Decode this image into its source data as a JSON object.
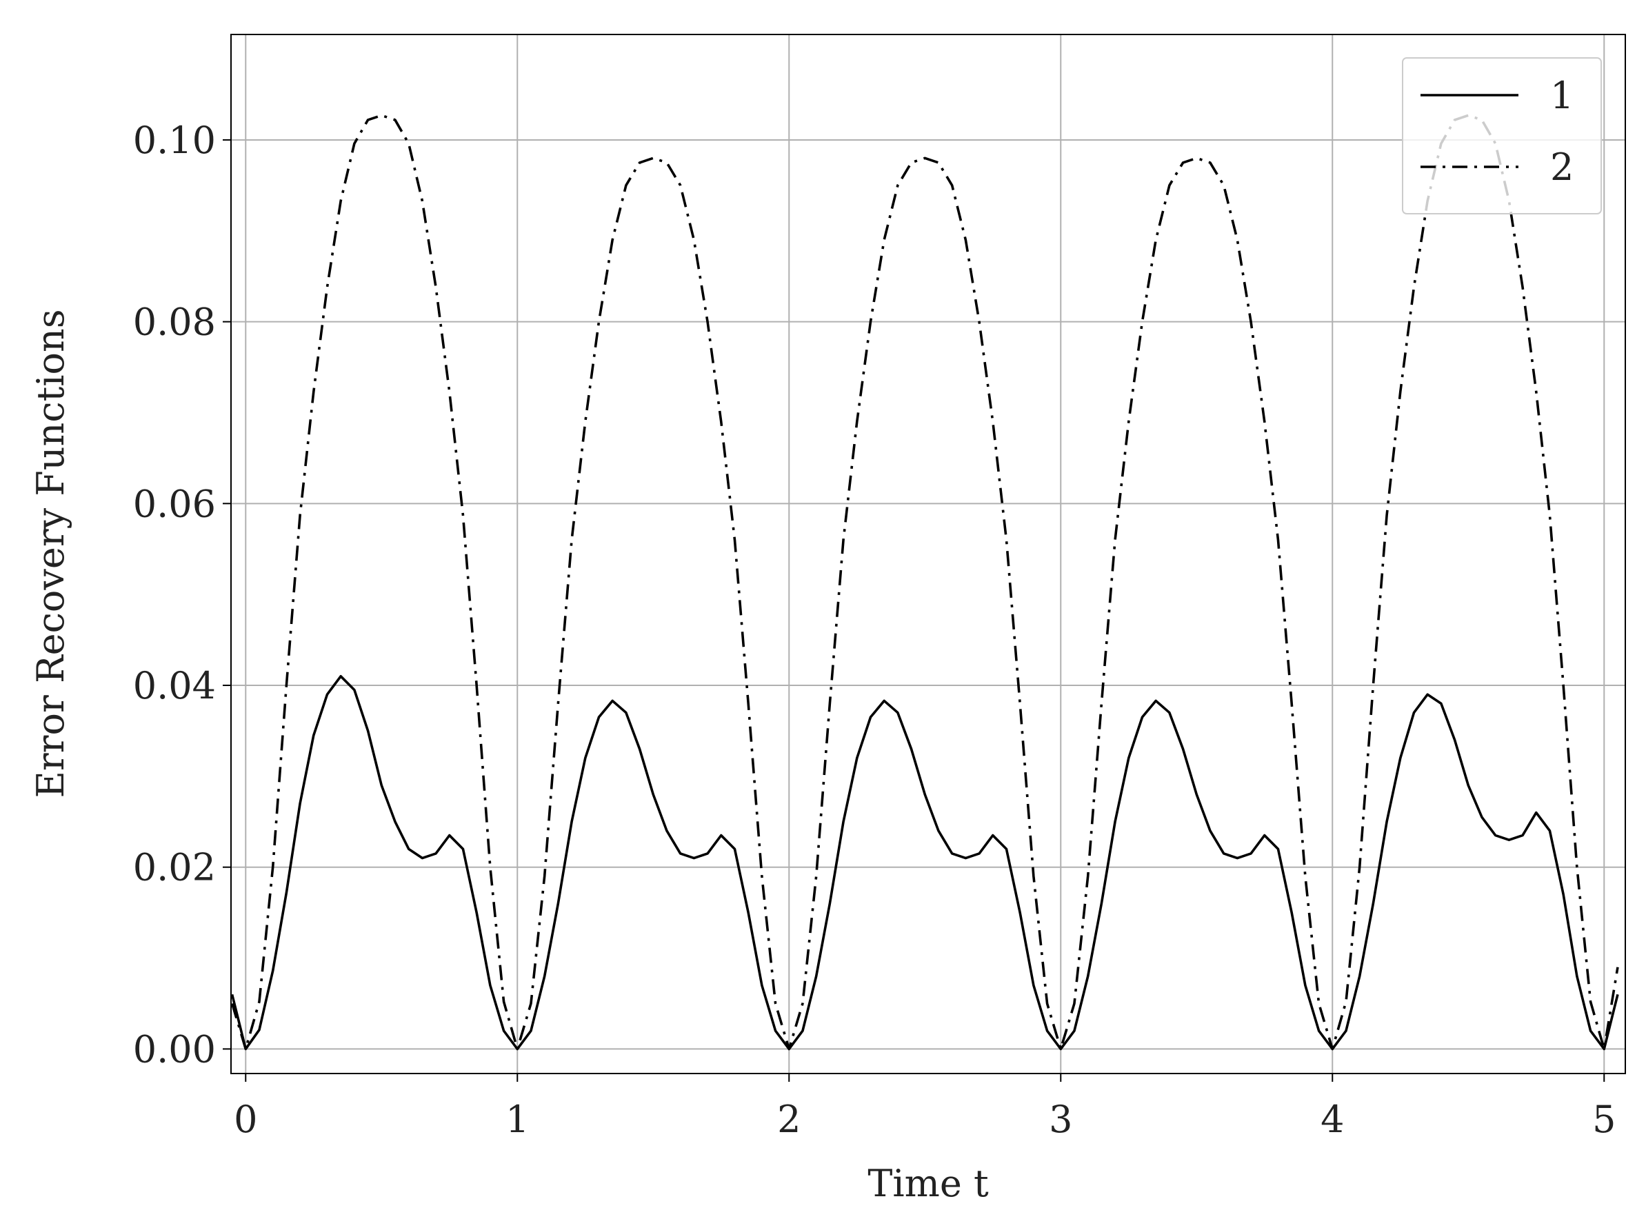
{
  "chart_data": {
    "type": "line",
    "xlabel": "Time t",
    "ylabel": "Error Recovery Functions",
    "xlim": [
      -0.054,
      5.078
    ],
    "ylim": [
      -0.0027,
      0.1116
    ],
    "xticks": [
      0,
      1,
      2,
      3,
      4,
      5
    ],
    "yticks": [
      {
        "value": 0,
        "label": "0.00"
      },
      {
        "value": 0.02,
        "label": "0.02"
      },
      {
        "value": 0.04,
        "label": "0.04"
      },
      {
        "value": 0.06,
        "label": "0.06"
      },
      {
        "value": 0.08,
        "label": "0.08"
      },
      {
        "value": 0.1,
        "label": "0.10"
      }
    ],
    "grid": true,
    "legend": "upper right",
    "x": [
      -0.05,
      0,
      0.05,
      0.1,
      0.15,
      0.2,
      0.25,
      0.3,
      0.35,
      0.4,
      0.45,
      0.5,
      0.55,
      0.6,
      0.65,
      0.7,
      0.75,
      0.8,
      0.85,
      0.9,
      0.95,
      1,
      1.05,
      1.1,
      1.15,
      1.2,
      1.25,
      1.3,
      1.35,
      1.4,
      1.45,
      1.5,
      1.55,
      1.6,
      1.65,
      1.7,
      1.75,
      1.8,
      1.85,
      1.9,
      1.95,
      2,
      2.05,
      2.1,
      2.15,
      2.2,
      2.25,
      2.3,
      2.35,
      2.4,
      2.45,
      2.5,
      2.55,
      2.6,
      2.65,
      2.7,
      2.75,
      2.8,
      2.85,
      2.9,
      2.95,
      3,
      3.05,
      3.1,
      3.15,
      3.2,
      3.25,
      3.3,
      3.35,
      3.4,
      3.45,
      3.5,
      3.55,
      3.6,
      3.65,
      3.7,
      3.75,
      3.8,
      3.85,
      3.9,
      3.95,
      4,
      4.05,
      4.1,
      4.15,
      4.2,
      4.25,
      4.3,
      4.35,
      4.4,
      4.45,
      4.5,
      4.55,
      4.6,
      4.65,
      4.7,
      4.75,
      4.8,
      4.85,
      4.9,
      4.95,
      5,
      5.05
    ],
    "series": [
      {
        "name": "1",
        "color": "#000000",
        "dash": "solid",
        "values": [
          0.006,
          0,
          0.0021,
          0.0086,
          0.0172,
          0.027,
          0.0345,
          0.039,
          0.041,
          0.0395,
          0.035,
          0.029,
          0.025,
          0.022,
          0.021,
          0.0215,
          0.0235,
          0.022,
          0.015,
          0.007,
          0.002,
          0,
          0.002,
          0.008,
          0.016,
          0.025,
          0.032,
          0.0365,
          0.0383,
          0.037,
          0.033,
          0.028,
          0.024,
          0.0215,
          0.021,
          0.0215,
          0.0235,
          0.022,
          0.015,
          0.007,
          0.002,
          0,
          0.002,
          0.008,
          0.016,
          0.025,
          0.032,
          0.0365,
          0.0383,
          0.037,
          0.033,
          0.028,
          0.024,
          0.0215,
          0.021,
          0.0215,
          0.0235,
          0.022,
          0.015,
          0.007,
          0.002,
          0,
          0.002,
          0.008,
          0.016,
          0.025,
          0.032,
          0.0365,
          0.0383,
          0.037,
          0.033,
          0.028,
          0.024,
          0.0215,
          0.021,
          0.0215,
          0.0235,
          0.022,
          0.015,
          0.007,
          0.002,
          0,
          0.002,
          0.008,
          0.016,
          0.025,
          0.032,
          0.037,
          0.039,
          0.038,
          0.034,
          0.029,
          0.0255,
          0.0235,
          0.023,
          0.0235,
          0.026,
          0.024,
          0.017,
          0.008,
          0.002,
          0,
          0.006
        ]
      },
      {
        "name": "2",
        "color": "#000000",
        "dash": "dashdot",
        "values": [
          0.005,
          0,
          0.0052,
          0.02,
          0.04,
          0.0587,
          0.0723,
          0.0838,
          0.0933,
          0.0996,
          0.1022,
          0.1027,
          0.1022,
          0.0996,
          0.0933,
          0.0838,
          0.0723,
          0.0587,
          0.04,
          0.02,
          0.0052,
          0,
          0.005,
          0.019,
          0.038,
          0.056,
          0.069,
          0.08,
          0.089,
          0.095,
          0.0975,
          0.098,
          0.0975,
          0.095,
          0.089,
          0.08,
          0.069,
          0.056,
          0.038,
          0.019,
          0.005,
          0,
          0.005,
          0.019,
          0.038,
          0.056,
          0.069,
          0.08,
          0.089,
          0.095,
          0.0975,
          0.098,
          0.0975,
          0.095,
          0.089,
          0.08,
          0.069,
          0.056,
          0.038,
          0.019,
          0.005,
          0,
          0.005,
          0.019,
          0.038,
          0.056,
          0.069,
          0.08,
          0.089,
          0.095,
          0.0975,
          0.098,
          0.0975,
          0.095,
          0.089,
          0.08,
          0.069,
          0.056,
          0.038,
          0.019,
          0.005,
          0,
          0.0052,
          0.02,
          0.04,
          0.0587,
          0.0723,
          0.0838,
          0.0933,
          0.0996,
          0.1022,
          0.1027,
          0.1022,
          0.0996,
          0.0933,
          0.0838,
          0.0723,
          0.0587,
          0.04,
          0.02,
          0.0052,
          0,
          0.009
        ]
      }
    ]
  }
}
